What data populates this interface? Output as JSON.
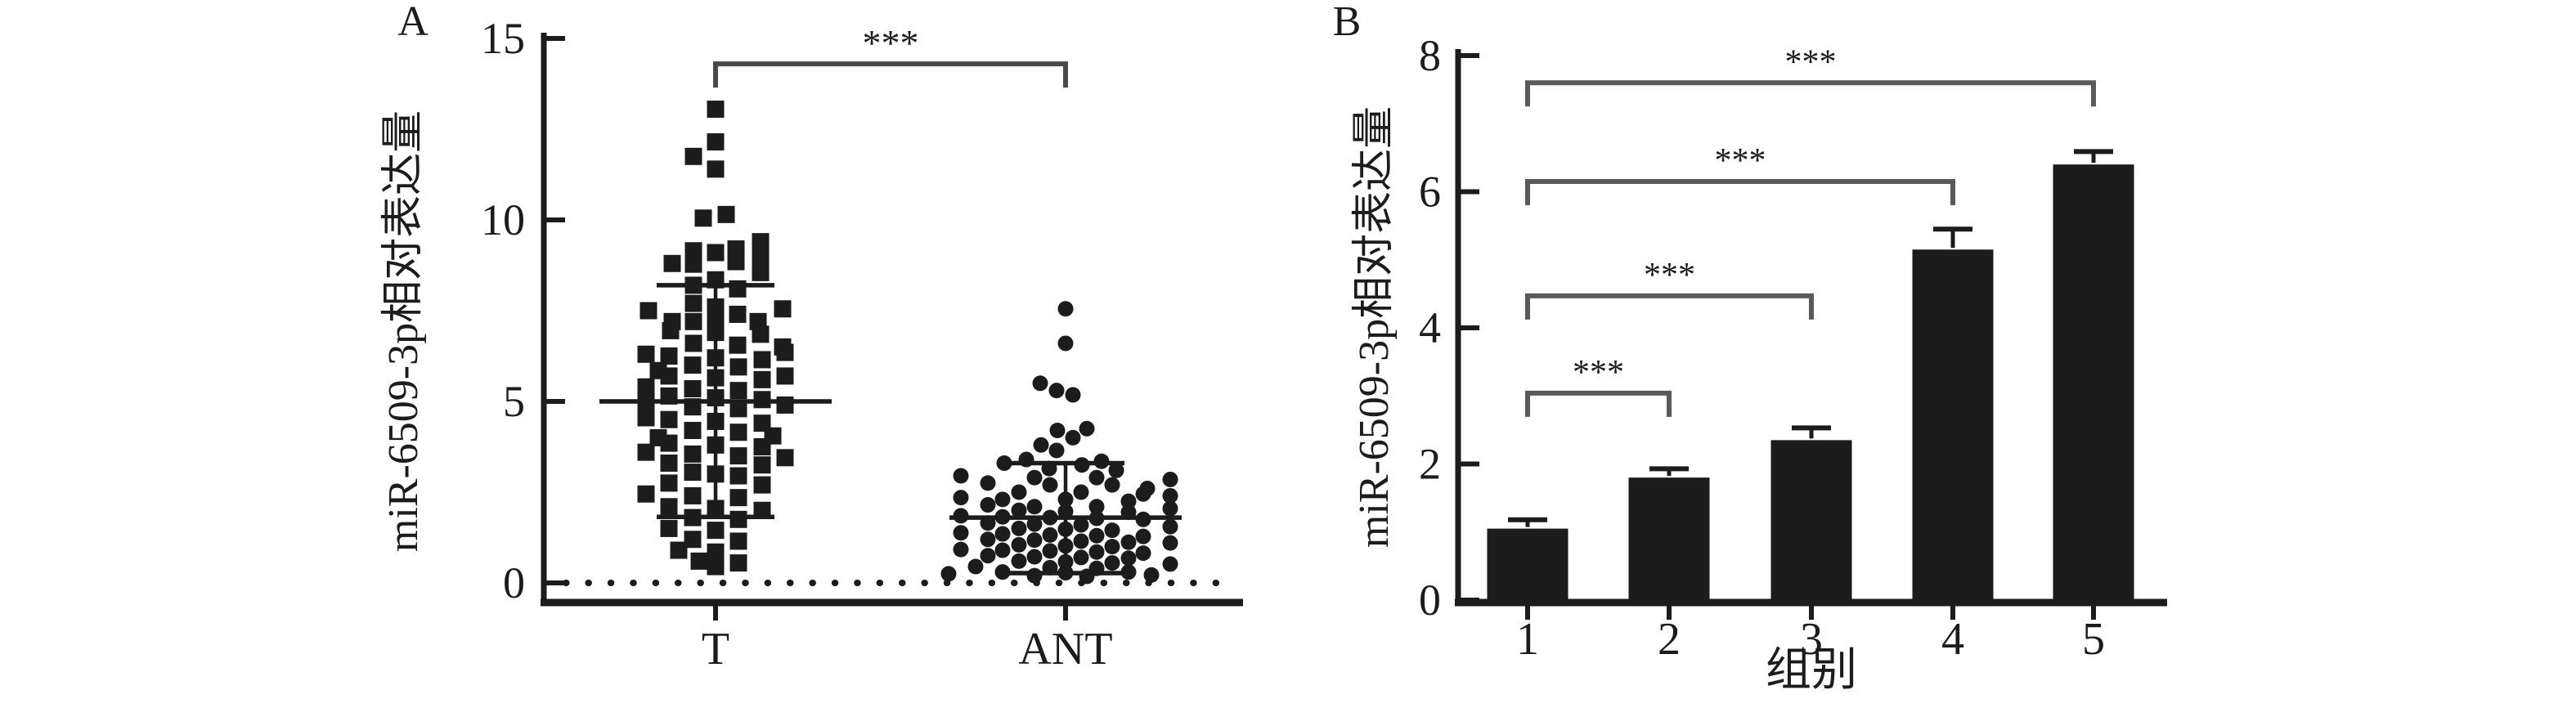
{
  "colors": {
    "ink": "#1c1c1c",
    "bracket_a": "#4a4a4a",
    "bracket_b": "#5a5a5a",
    "background": "#ffffff"
  },
  "chart_data": [
    {
      "type": "scatter",
      "panel_label": "A",
      "ylabel": "miR-6509-3p相对表达量",
      "xlabel": "",
      "ylim": [
        0,
        15
      ],
      "yticks": [
        0,
        5,
        10,
        15
      ],
      "categories": [
        "T",
        "ANT"
      ],
      "zero_line": "dotted",
      "legend": "none",
      "significance": [
        {
          "from": "T",
          "to": "ANT",
          "label": "***",
          "height": 14.3
        }
      ],
      "groups": [
        {
          "name": "T",
          "marker": "square",
          "mean": 5.0,
          "sd_low": 1.82,
          "sd_high": 8.2,
          "points": [
            [
              0,
              13.05
            ],
            [
              0,
              12.15
            ],
            [
              -27,
              11.75
            ],
            [
              0,
              11.4
            ],
            [
              -15,
              10.05
            ],
            [
              13,
              10.15
            ],
            [
              55,
              9.4
            ],
            [
              25,
              9.2
            ],
            [
              -27,
              9.15
            ],
            [
              0,
              9.1
            ],
            [
              55,
              8.95
            ],
            [
              25,
              8.85
            ],
            [
              -53,
              8.8
            ],
            [
              -27,
              8.78
            ],
            [
              55,
              8.55
            ],
            [
              0,
              8.35
            ],
            [
              -27,
              8.2
            ],
            [
              27,
              8.1
            ],
            [
              -27,
              7.7
            ],
            [
              0,
              7.6
            ],
            [
              -82,
              7.5
            ],
            [
              82,
              7.55
            ],
            [
              27,
              7.4
            ],
            [
              0,
              7.3
            ],
            [
              52,
              7.2
            ],
            [
              -53,
              7.2
            ],
            [
              -27,
              7.2
            ],
            [
              -55,
              6.95
            ],
            [
              0,
              6.9
            ],
            [
              55,
              6.85
            ],
            [
              -27,
              6.6
            ],
            [
              27,
              6.55
            ],
            [
              82,
              6.5
            ],
            [
              -85,
              6.3
            ],
            [
              -57,
              6.25
            ],
            [
              0,
              6.2
            ],
            [
              57,
              6.15
            ],
            [
              85,
              6.35
            ],
            [
              -28,
              6.0
            ],
            [
              28,
              5.95
            ],
            [
              -70,
              5.85
            ],
            [
              -57,
              5.7
            ],
            [
              0,
              5.65
            ],
            [
              57,
              5.6
            ],
            [
              85,
              5.7
            ],
            [
              -85,
              5.4
            ],
            [
              -28,
              5.35
            ],
            [
              28,
              5.3
            ],
            [
              -57,
              5.15
            ],
            [
              0,
              5.1
            ],
            [
              57,
              5.05
            ],
            [
              -85,
              5.0
            ],
            [
              -28,
              4.85
            ],
            [
              28,
              4.8
            ],
            [
              85,
              4.9
            ],
            [
              -85,
              4.55
            ],
            [
              -57,
              4.5
            ],
            [
              0,
              4.45
            ],
            [
              57,
              4.4
            ],
            [
              -28,
              4.2
            ],
            [
              28,
              4.15
            ],
            [
              -70,
              4.0
            ],
            [
              70,
              4.05
            ],
            [
              -57,
              3.85
            ],
            [
              0,
              3.8
            ],
            [
              57,
              3.75
            ],
            [
              -85,
              3.6
            ],
            [
              -28,
              3.55
            ],
            [
              28,
              3.5
            ],
            [
              85,
              3.45
            ],
            [
              -57,
              3.3
            ],
            [
              57,
              3.25
            ],
            [
              -28,
              3.05
            ],
            [
              0,
              3.0
            ],
            [
              28,
              2.95
            ],
            [
              -57,
              2.75
            ],
            [
              57,
              2.7
            ],
            [
              -85,
              2.45
            ],
            [
              -28,
              2.4
            ],
            [
              28,
              2.35
            ],
            [
              -57,
              2.1
            ],
            [
              0,
              2.05
            ],
            [
              57,
              2.0
            ],
            [
              -28,
              1.8
            ],
            [
              28,
              1.75
            ],
            [
              -57,
              1.5
            ],
            [
              0,
              1.45
            ],
            [
              -28,
              1.2
            ],
            [
              28,
              1.15
            ],
            [
              -45,
              0.9
            ],
            [
              0,
              0.85
            ],
            [
              -20,
              0.6
            ],
            [
              28,
              0.55
            ],
            [
              0,
              0.45
            ]
          ]
        },
        {
          "name": "ANT",
          "marker": "circle",
          "mean": 1.8,
          "sd_low": 0.27,
          "sd_high": 3.3,
          "points": [
            [
              0,
              7.55
            ],
            [
              0,
              6.6
            ],
            [
              -31,
              5.5
            ],
            [
              -11,
              5.3
            ],
            [
              9,
              5.18
            ],
            [
              -10,
              4.2
            ],
            [
              26,
              4.25
            ],
            [
              9,
              4.0
            ],
            [
              -30,
              3.8
            ],
            [
              -11,
              3.65
            ],
            [
              -48,
              3.4
            ],
            [
              44,
              3.35
            ],
            [
              -75,
              3.3
            ],
            [
              20,
              3.25
            ],
            [
              -20,
              3.15
            ],
            [
              62,
              3.1
            ],
            [
              -128,
              2.95
            ],
            [
              -38,
              2.9
            ],
            [
              38,
              2.9
            ],
            [
              128,
              2.85
            ],
            [
              -95,
              2.75
            ],
            [
              -19,
              2.7
            ],
            [
              57,
              2.7
            ],
            [
              100,
              2.6
            ],
            [
              -57,
              2.5
            ],
            [
              19,
              2.5
            ],
            [
              95,
              2.45
            ],
            [
              128,
              2.4
            ],
            [
              -128,
              2.35
            ],
            [
              -77,
              2.3
            ],
            [
              0,
              2.3
            ],
            [
              77,
              2.25
            ],
            [
              -95,
              2.15
            ],
            [
              -38,
              2.1
            ],
            [
              38,
              2.1
            ],
            [
              128,
              2.05
            ],
            [
              -57,
              2.0
            ],
            [
              0,
              1.97
            ],
            [
              77,
              1.95
            ],
            [
              -128,
              1.85
            ],
            [
              -77,
              1.82
            ],
            [
              -19,
              1.8
            ],
            [
              38,
              1.78
            ],
            [
              95,
              1.75
            ],
            [
              -95,
              1.65
            ],
            [
              -38,
              1.62
            ],
            [
              19,
              1.6
            ],
            [
              128,
              1.55
            ],
            [
              -57,
              1.5
            ],
            [
              0,
              1.48
            ],
            [
              57,
              1.45
            ],
            [
              -128,
              1.38
            ],
            [
              -77,
              1.35
            ],
            [
              -19,
              1.32
            ],
            [
              38,
              1.3
            ],
            [
              95,
              1.28
            ],
            [
              -95,
              1.2
            ],
            [
              -38,
              1.18
            ],
            [
              19,
              1.15
            ],
            [
              77,
              1.12
            ],
            [
              128,
              1.1
            ],
            [
              -57,
              1.05
            ],
            [
              0,
              1.02
            ],
            [
              57,
              1.0
            ],
            [
              -128,
              0.92
            ],
            [
              -77,
              0.9
            ],
            [
              -19,
              0.88
            ],
            [
              38,
              0.85
            ],
            [
              95,
              0.82
            ],
            [
              -95,
              0.75
            ],
            [
              -38,
              0.72
            ],
            [
              19,
              0.7
            ],
            [
              77,
              0.68
            ],
            [
              -57,
              0.6
            ],
            [
              0,
              0.58
            ],
            [
              57,
              0.55
            ],
            [
              128,
              0.52
            ],
            [
              -110,
              0.45
            ],
            [
              -19,
              0.42
            ],
            [
              38,
              0.4
            ],
            [
              -77,
              0.3
            ],
            [
              0,
              0.28
            ],
            [
              77,
              0.3
            ],
            [
              -143,
              0.25
            ],
            [
              -38,
              0.2
            ],
            [
              26,
              0.18
            ],
            [
              105,
              0.22
            ]
          ]
        }
      ]
    },
    {
      "type": "bar",
      "panel_label": "B",
      "ylabel": "miR-6509-3p相对表达量",
      "xlabel": "组别",
      "ylim": [
        0,
        8
      ],
      "yticks": [
        0,
        2,
        4,
        6,
        8
      ],
      "categories": [
        "1",
        "2",
        "3",
        "4",
        "5"
      ],
      "values": [
        1.05,
        1.8,
        2.35,
        5.15,
        6.4
      ],
      "errors_upper": [
        0.13,
        0.13,
        0.18,
        0.3,
        0.19
      ],
      "bar_color": "#1c1c1c",
      "grid": "off",
      "legend": "none",
      "significance": [
        {
          "from": "1",
          "to": "2",
          "label": "***",
          "height": 3.04
        },
        {
          "from": "1",
          "to": "3",
          "label": "***",
          "height": 4.47
        },
        {
          "from": "1",
          "to": "4",
          "label": "***",
          "height": 6.15
        },
        {
          "from": "1",
          "to": "5",
          "label": "***",
          "height": 7.6
        }
      ]
    }
  ]
}
